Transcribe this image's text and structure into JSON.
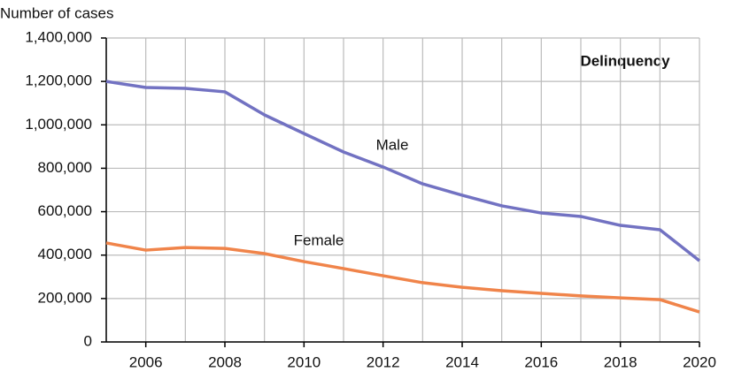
{
  "chart_data": {
    "type": "line",
    "y_axis_label": "Number of cases",
    "annotation": "Delinquency",
    "x": [
      2005,
      2006,
      2007,
      2008,
      2009,
      2010,
      2011,
      2012,
      2013,
      2014,
      2015,
      2016,
      2017,
      2018,
      2019,
      2020
    ],
    "series": [
      {
        "name": "Male",
        "color": "#7272c2",
        "values": [
          1200000,
          1172000,
          1168000,
          1152000,
          1046000,
          960000,
          875000,
          806000,
          728000,
          676000,
          627000,
          594000,
          578000,
          537000,
          517000,
          374000
        ]
      },
      {
        "name": "Female",
        "color": "#f0844a",
        "values": [
          456000,
          423000,
          435000,
          431000,
          407000,
          370000,
          338000,
          305000,
          273000,
          252000,
          236000,
          224000,
          212000,
          203000,
          195000,
          138000
        ]
      }
    ],
    "xlim": [
      2005,
      2020
    ],
    "xticks": [
      2006,
      2008,
      2010,
      2012,
      2014,
      2016,
      2018,
      2020
    ],
    "ylim": [
      0,
      1400000
    ],
    "yticks": [
      0,
      {
        "value": 200000,
        "label": "200,000"
      },
      {
        "value": 400000,
        "label": "400,000"
      },
      {
        "value": 600000,
        "label": "600,000"
      },
      {
        "value": 800000,
        "label": "800,000"
      },
      {
        "value": 1000000,
        "label": "1,000,000"
      },
      {
        "value": 1200000,
        "label": "1,200,000"
      },
      {
        "value": 1400000,
        "label": "1,400,000"
      }
    ],
    "grid": true
  }
}
